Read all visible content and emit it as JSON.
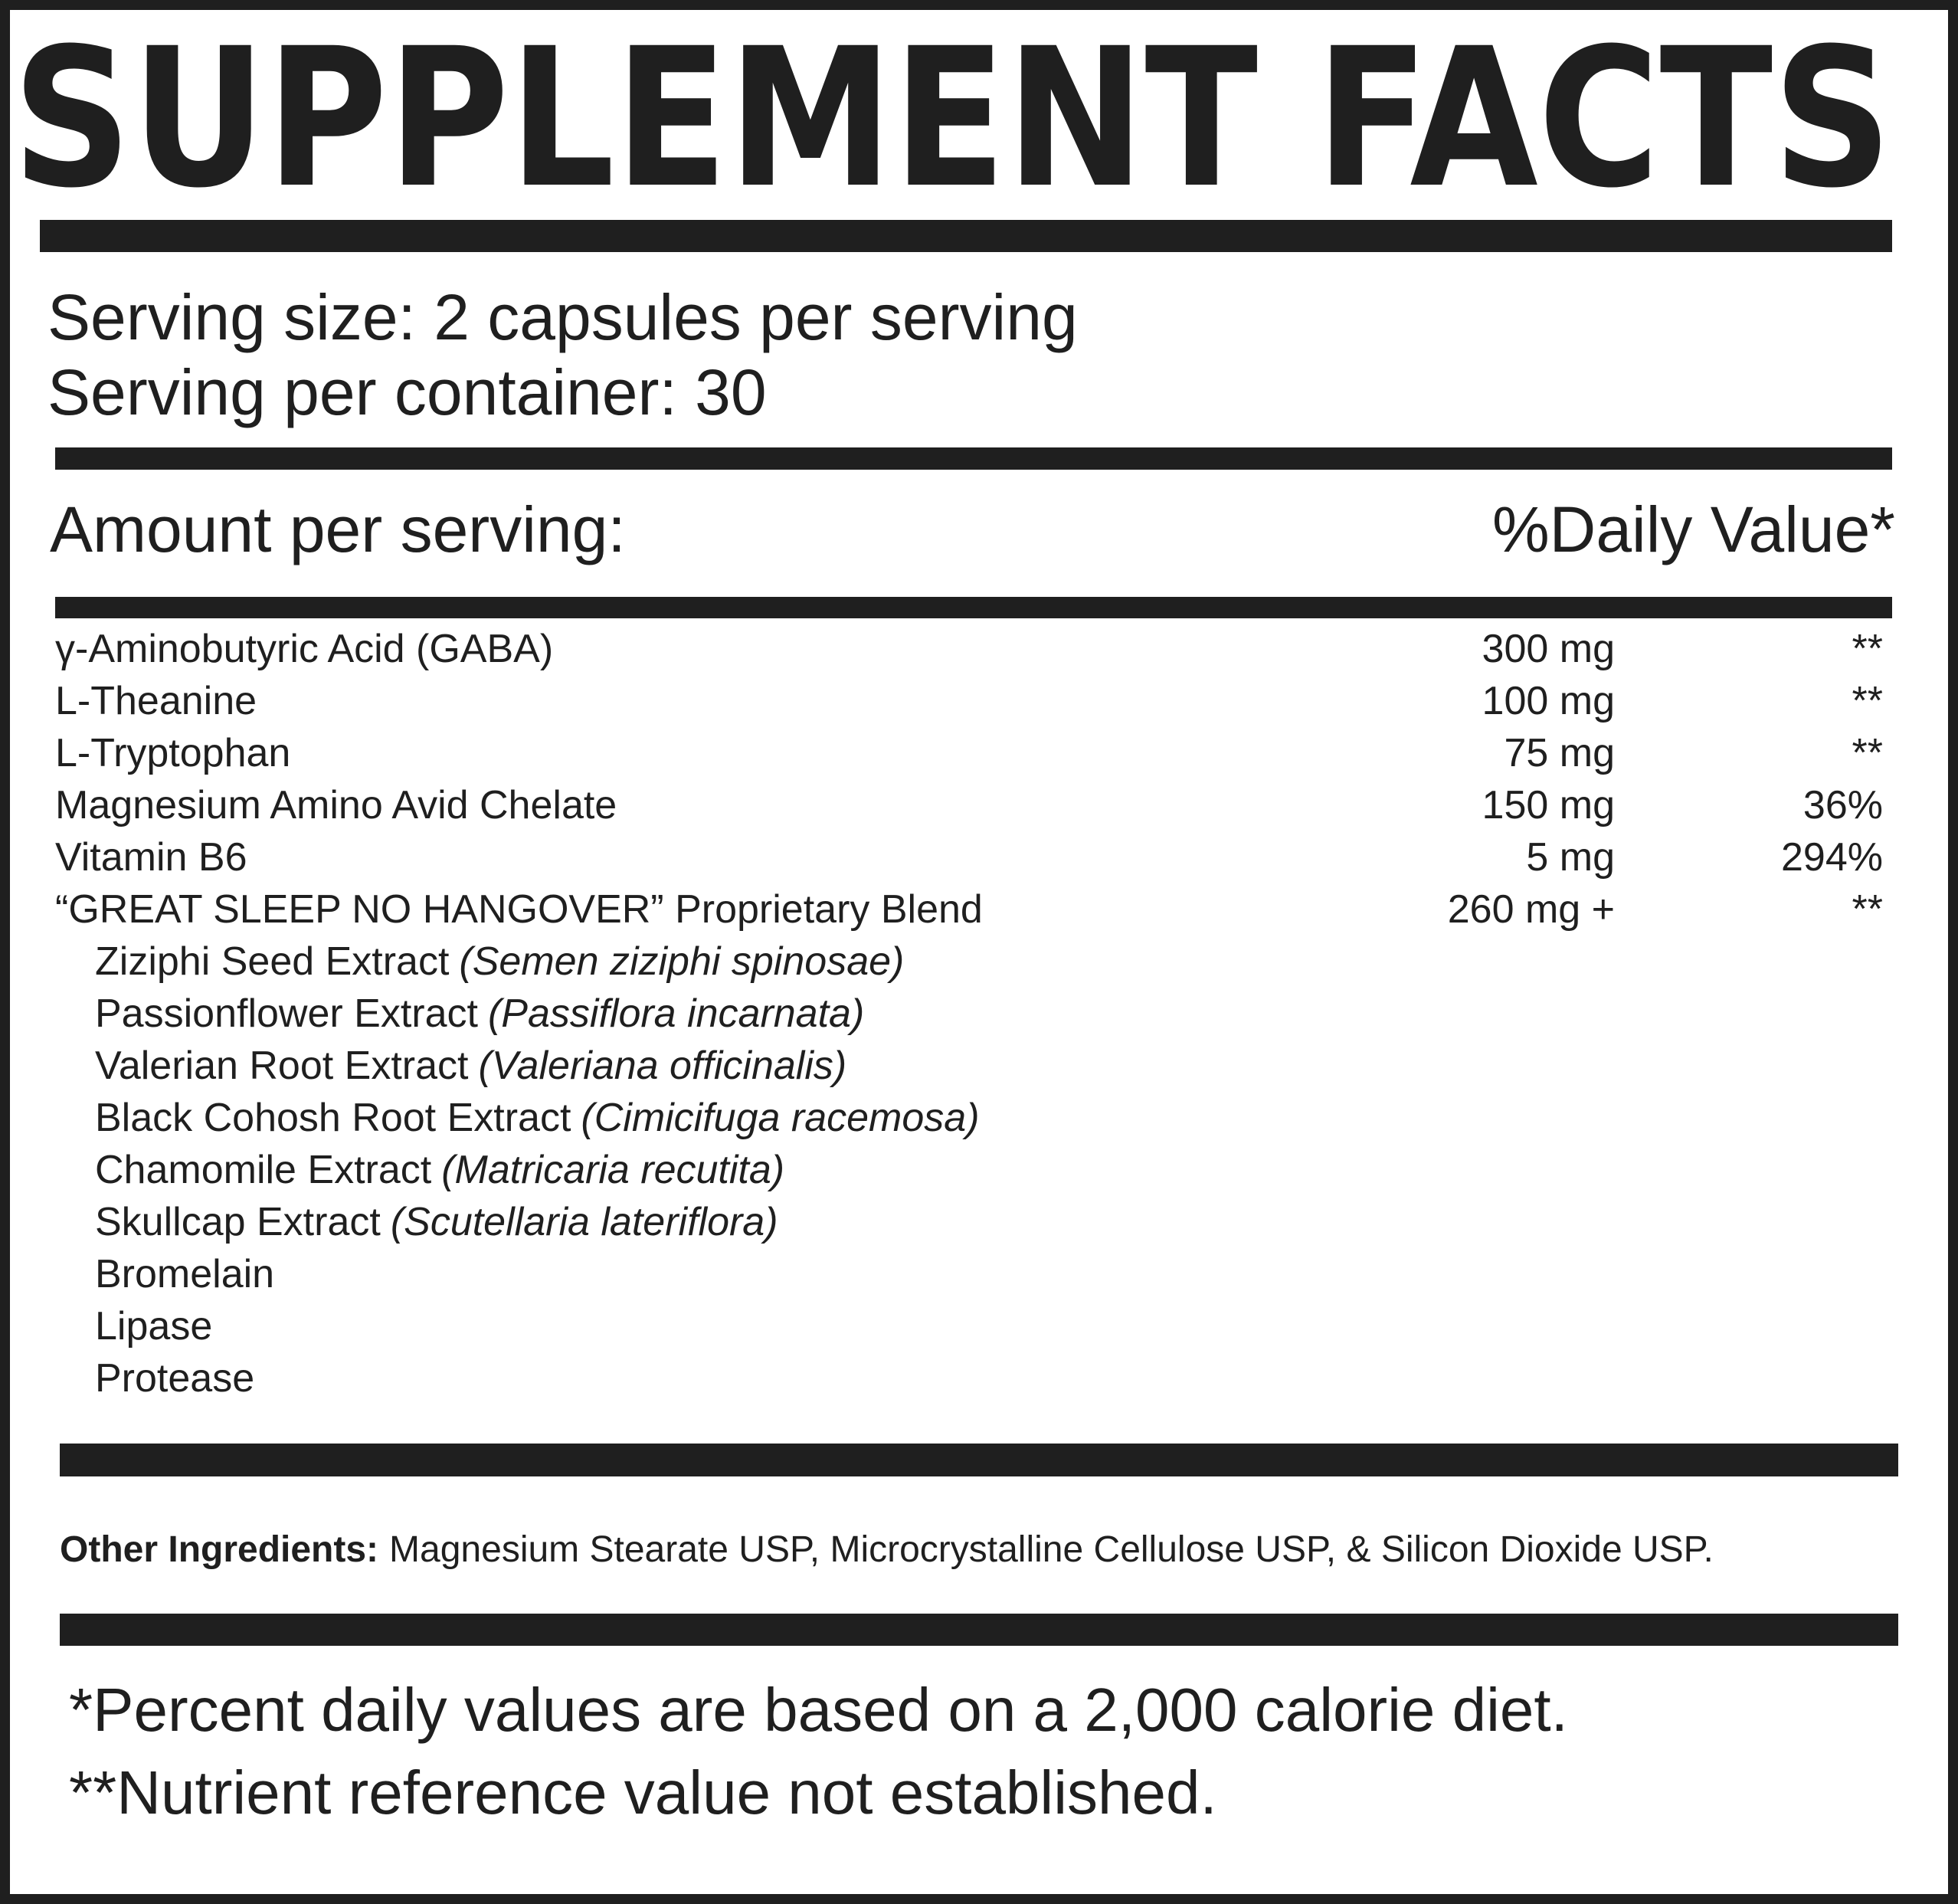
{
  "title": "SUPPLEMENT FACTS",
  "serving": [
    "Serving size: 2 capsules per serving",
    "Serving per container: 30"
  ],
  "header": {
    "amount": "Amount per serving:",
    "daily_value": "%Daily Value*"
  },
  "rows": [
    {
      "name": "γ-Aminobutyric Acid (GABA)",
      "amount": "300 mg",
      "dv": "**"
    },
    {
      "name": "L-Theanine",
      "amount": "100 mg",
      "dv": "**"
    },
    {
      "name": "L-Tryptophan",
      "amount": "75 mg",
      "dv": "**"
    },
    {
      "name": "Magnesium Amino Avid Chelate",
      "amount": "150 mg",
      "dv": "36%"
    },
    {
      "name": "Vitamin B6",
      "amount": "5 mg",
      "dv": "294%"
    },
    {
      "name": "“GREAT SLEEP NO HANGOVER” Proprietary Blend",
      "amount": "260 mg +",
      "dv": "**"
    }
  ],
  "blend_items": [
    {
      "name": "Ziziphi Seed Extract",
      "latin": "(Semen ziziphi spinosae)"
    },
    {
      "name": "Passionflower Extract",
      "latin": "(Passiflora incarnata)"
    },
    {
      "name": "Valerian Root Extract",
      "latin": "(Valeriana officinalis)"
    },
    {
      "name": "Black Cohosh Root Extract",
      "latin": "(Cimicifuga racemosa)"
    },
    {
      "name": "Chamomile Extract",
      "latin": "(Matricaria recutita)"
    },
    {
      "name": "Skullcap Extract",
      "latin": "(Scutellaria lateriflora)"
    },
    {
      "name": "Bromelain"
    },
    {
      "name": "Lipase"
    },
    {
      "name": "Protease"
    }
  ],
  "other_ingredients": {
    "label": "Other Ingredients:",
    "text": "Magnesium Stearate USP, Microcrystalline Cellulose USP, & Silicon Dioxide USP."
  },
  "footnotes": [
    "*Percent daily values are based on a 2,000 calorie diet.",
    "**Nutrient reference value not established."
  ]
}
